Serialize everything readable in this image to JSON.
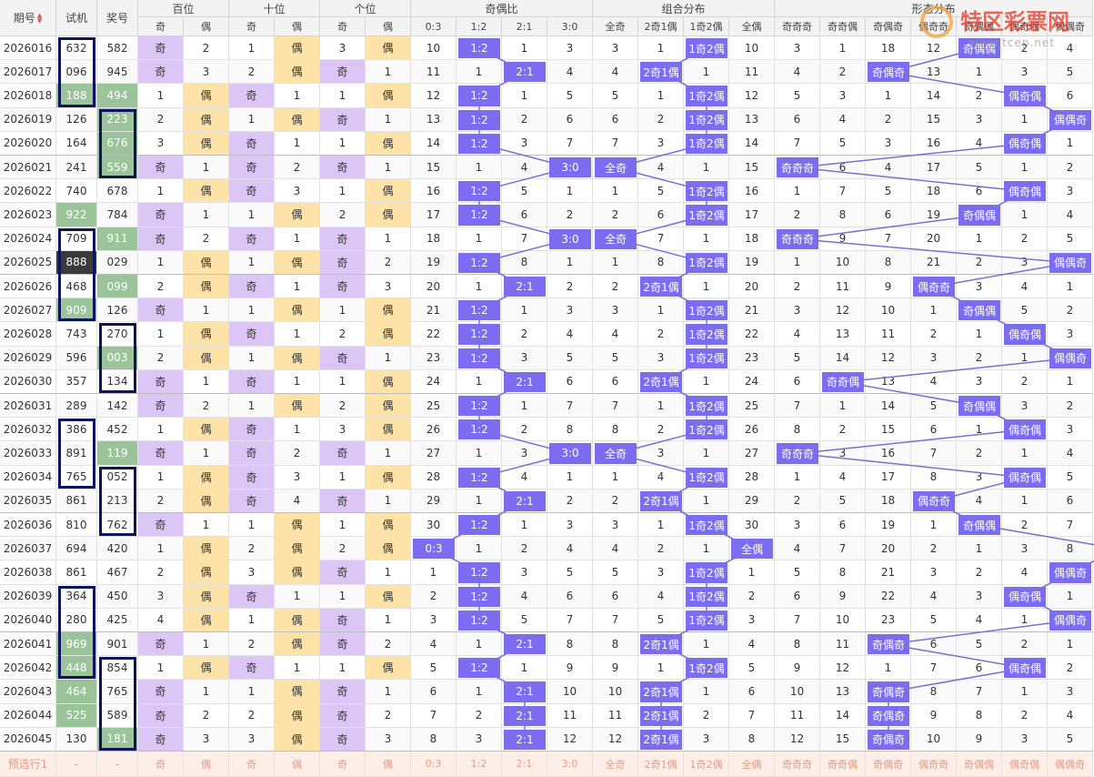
{
  "header": {
    "issue": "期号",
    "test": "试机",
    "draw": "奖号",
    "groups": [
      "百位",
      "十位",
      "个位",
      "奇偶比",
      "组合分布",
      "形态分布"
    ],
    "sub": [
      "奇",
      "偶",
      "奇",
      "偶",
      "奇",
      "偶",
      "0:3",
      "1:2",
      "2:1",
      "3:0",
      "全奇",
      "2奇1偶",
      "1奇2偶",
      "全偶",
      "奇奇奇",
      "奇奇偶",
      "奇偶奇",
      "偶奇奇",
      "奇偶偶",
      "偶奇偶",
      "偶偶奇"
    ]
  },
  "watermark": {
    "name": "特区彩票网",
    "url": "www.tcep.net"
  },
  "rows": [
    {
      "issue": "2026016",
      "test": "632",
      "draw": "582",
      "cells": [
        "奇",
        2,
        1,
        "偶",
        3,
        "偶",
        10,
        "1:2",
        1,
        3,
        3,
        1,
        "1奇2偶",
        10,
        3,
        1,
        18,
        12,
        "奇偶偶",
        2,
        4
      ]
    },
    {
      "issue": "2026017",
      "test": "096",
      "draw": "945",
      "cells": [
        "奇",
        3,
        2,
        "偶",
        "奇",
        1,
        11,
        1,
        "2:1",
        4,
        4,
        "2奇1偶",
        1,
        11,
        4,
        2,
        "奇偶奇",
        13,
        1,
        3,
        5
      ]
    },
    {
      "issue": "2026018",
      "test": "188",
      "draw": "494",
      "test_color": "#9cc49a",
      "draw_color": "#9cc49a",
      "cells": [
        1,
        "偶",
        "奇",
        1,
        1,
        "偶",
        12,
        "1:2",
        1,
        5,
        5,
        1,
        "1奇2偶",
        12,
        5,
        3,
        1,
        14,
        2,
        "偶奇偶",
        6
      ]
    },
    {
      "issue": "2026019",
      "test": "126",
      "draw": "223",
      "draw_color": "#9cc49a",
      "cells": [
        2,
        "偶",
        1,
        "偶",
        "奇",
        1,
        13,
        "1:2",
        2,
        6,
        6,
        2,
        "1奇2偶",
        13,
        6,
        4,
        2,
        15,
        3,
        1,
        "偶偶奇"
      ]
    },
    {
      "issue": "2026020",
      "test": "164",
      "draw": "676",
      "draw_color": "#9cc49a",
      "cells": [
        3,
        "偶",
        "奇",
        1,
        1,
        "偶",
        14,
        "1:2",
        3,
        7,
        7,
        3,
        "1奇2偶",
        14,
        7,
        5,
        3,
        16,
        4,
        "偶奇偶",
        1
      ]
    },
    {
      "issue": "2026021",
      "test": "241",
      "draw": "559",
      "draw_color": "#9cc49a",
      "cells": [
        "奇",
        1,
        "奇",
        2,
        "奇",
        1,
        15,
        1,
        4,
        "3:0",
        "全奇",
        4,
        1,
        15,
        "奇奇奇",
        6,
        4,
        17,
        5,
        1,
        2
      ]
    },
    {
      "issue": "2026022",
      "test": "740",
      "draw": "678",
      "cells": [
        1,
        "偶",
        "奇",
        3,
        1,
        "偶",
        16,
        "1:2",
        5,
        1,
        1,
        5,
        "1奇2偶",
        16,
        1,
        7,
        5,
        18,
        6,
        "偶奇偶",
        3
      ]
    },
    {
      "issue": "2026023",
      "test": "922",
      "draw": "784",
      "test_color": "#9cc49a",
      "cells": [
        "奇",
        1,
        1,
        "偶",
        2,
        "偶",
        17,
        "1:2",
        6,
        2,
        2,
        6,
        "1奇2偶",
        17,
        2,
        8,
        6,
        19,
        "奇偶偶",
        1,
        4
      ]
    },
    {
      "issue": "2026024",
      "test": "709",
      "draw": "911",
      "draw_color": "#9cc49a",
      "cells": [
        "奇",
        2,
        "奇",
        1,
        "奇",
        1,
        18,
        1,
        7,
        "3:0",
        "全奇",
        7,
        1,
        18,
        "奇奇奇",
        9,
        7,
        20,
        1,
        2,
        5
      ]
    },
    {
      "issue": "2026025",
      "test": "888",
      "draw": "029",
      "test_color": "#3a3a3a",
      "cells": [
        1,
        "偶",
        1,
        "偶",
        "奇",
        2,
        19,
        "1:2",
        8,
        1,
        1,
        8,
        "1奇2偶",
        19,
        1,
        10,
        8,
        21,
        2,
        3,
        "偶偶奇"
      ]
    },
    {
      "issue": "2026026",
      "test": "468",
      "draw": "099",
      "draw_color": "#9cc49a",
      "cells": [
        2,
        "偶",
        "奇",
        1,
        "奇",
        3,
        20,
        1,
        "2:1",
        2,
        2,
        "2奇1偶",
        1,
        20,
        2,
        11,
        9,
        "偶奇奇",
        3,
        4,
        1
      ]
    },
    {
      "issue": "2026027",
      "test": "909",
      "draw": "126",
      "test_color": "#9cc49a",
      "cells": [
        "奇",
        1,
        1,
        "偶",
        1,
        "偶",
        21,
        "1:2",
        1,
        3,
        3,
        1,
        "1奇2偶",
        21,
        3,
        12,
        10,
        1,
        "奇偶偶",
        5,
        2
      ]
    },
    {
      "issue": "2026028",
      "test": "743",
      "draw": "270",
      "cells": [
        1,
        "偶",
        "奇",
        1,
        2,
        "偶",
        22,
        "1:2",
        2,
        4,
        4,
        2,
        "1奇2偶",
        22,
        4,
        13,
        11,
        2,
        1,
        "偶奇偶",
        3
      ]
    },
    {
      "issue": "2026029",
      "test": "596",
      "draw": "003",
      "draw_color": "#9cc49a",
      "cells": [
        2,
        "偶",
        1,
        "偶",
        "奇",
        1,
        23,
        "1:2",
        3,
        5,
        5,
        3,
        "1奇2偶",
        23,
        5,
        14,
        12,
        3,
        2,
        1,
        "偶偶奇"
      ]
    },
    {
      "issue": "2026030",
      "test": "357",
      "draw": "134",
      "cells": [
        "奇",
        1,
        "奇",
        1,
        1,
        "偶",
        24,
        1,
        "2:1",
        6,
        6,
        "2奇1偶",
        1,
        24,
        6,
        "奇奇偶",
        13,
        4,
        3,
        2,
        1
      ]
    },
    {
      "issue": "2026031",
      "test": "289",
      "draw": "142",
      "cells": [
        "奇",
        2,
        1,
        "偶",
        2,
        "偶",
        25,
        "1:2",
        1,
        7,
        7,
        1,
        "1奇2偶",
        25,
        7,
        1,
        14,
        5,
        "奇偶偶",
        3,
        2
      ]
    },
    {
      "issue": "2026032",
      "test": "386",
      "draw": "452",
      "cells": [
        1,
        "偶",
        "奇",
        1,
        3,
        "偶",
        26,
        "1:2",
        2,
        8,
        8,
        2,
        "1奇2偶",
        26,
        8,
        2,
        15,
        6,
        1,
        "偶奇偶",
        3
      ]
    },
    {
      "issue": "2026033",
      "test": "891",
      "draw": "119",
      "draw_color": "#9cc49a",
      "cells": [
        "奇",
        1,
        "奇",
        2,
        "奇",
        1,
        27,
        1,
        3,
        "3:0",
        "全奇",
        3,
        1,
        27,
        "奇奇奇",
        3,
        16,
        7,
        2,
        1,
        4
      ]
    },
    {
      "issue": "2026034",
      "test": "765",
      "draw": "052",
      "cells": [
        1,
        "偶",
        "奇",
        3,
        1,
        "偶",
        28,
        "1:2",
        4,
        1,
        1,
        4,
        "1奇2偶",
        28,
        1,
        4,
        17,
        8,
        3,
        "偶奇偶",
        5
      ]
    },
    {
      "issue": "2026035",
      "test": "861",
      "draw": "213",
      "cells": [
        2,
        "偶",
        "奇",
        4,
        "奇",
        1,
        29,
        1,
        "2:1",
        2,
        2,
        "2奇1偶",
        1,
        29,
        2,
        5,
        18,
        "偶奇奇",
        4,
        1,
        6
      ]
    },
    {
      "issue": "2026036",
      "test": "810",
      "draw": "762",
      "cells": [
        "奇",
        1,
        1,
        "偶",
        1,
        "偶",
        30,
        "1:2",
        1,
        3,
        3,
        1,
        "1奇2偶",
        30,
        3,
        6,
        19,
        1,
        "奇偶偶",
        2,
        7
      ]
    },
    {
      "issue": "2026037",
      "test": "694",
      "draw": "420",
      "cells": [
        1,
        "偶",
        2,
        "偶",
        2,
        "偶",
        "0:3",
        1,
        2,
        4,
        4,
        2,
        1,
        "全偶",
        4,
        7,
        20,
        2,
        1,
        3,
        8
      ]
    },
    {
      "issue": "2026038",
      "test": "861",
      "draw": "467",
      "cells": [
        2,
        "偶",
        3,
        "偶",
        "奇",
        1,
        1,
        "1:2",
        3,
        5,
        5,
        3,
        "1奇2偶",
        1,
        5,
        8,
        21,
        3,
        2,
        4,
        "偶偶奇"
      ]
    },
    {
      "issue": "2026039",
      "test": "364",
      "draw": "450",
      "cells": [
        3,
        "偶",
        "奇",
        1,
        1,
        "偶",
        2,
        "1:2",
        4,
        6,
        6,
        4,
        "1奇2偶",
        2,
        6,
        9,
        22,
        4,
        3,
        "偶奇偶",
        1
      ]
    },
    {
      "issue": "2026040",
      "test": "280",
      "draw": "425",
      "cells": [
        4,
        "偶",
        1,
        "偶",
        "奇",
        1,
        3,
        "1:2",
        5,
        7,
        7,
        5,
        "1奇2偶",
        3,
        7,
        10,
        23,
        5,
        4,
        1,
        "偶偶奇"
      ]
    },
    {
      "issue": "2026041",
      "test": "969",
      "draw": "901",
      "test_color": "#9cc49a",
      "cells": [
        "奇",
        1,
        2,
        "偶",
        "奇",
        2,
        4,
        1,
        "2:1",
        8,
        8,
        "2奇1偶",
        1,
        4,
        8,
        11,
        "奇偶奇",
        6,
        5,
        2,
        1
      ]
    },
    {
      "issue": "2026042",
      "test": "448",
      "draw": "854",
      "test_color": "#9cc49a",
      "cells": [
        1,
        "偶",
        "奇",
        1,
        1,
        "偶",
        5,
        "1:2",
        1,
        9,
        9,
        1,
        "1奇2偶",
        5,
        9,
        12,
        1,
        7,
        6,
        "偶奇偶",
        2
      ]
    },
    {
      "issue": "2026043",
      "test": "464",
      "draw": "765",
      "test_color": "#9cc49a",
      "cells": [
        "奇",
        1,
        1,
        "偶",
        "奇",
        1,
        6,
        1,
        "2:1",
        10,
        10,
        "2奇1偶",
        1,
        6,
        10,
        13,
        "奇偶奇",
        8,
        7,
        1,
        3
      ]
    },
    {
      "issue": "2026044",
      "test": "525",
      "draw": "589",
      "test_color": "#9cc49a",
      "cells": [
        "奇",
        2,
        2,
        "偶",
        "奇",
        2,
        7,
        2,
        "2:1",
        11,
        11,
        "2奇1偶",
        2,
        7,
        11,
        14,
        "奇偶奇",
        9,
        8,
        2,
        4
      ]
    },
    {
      "issue": "2026045",
      "test": "130",
      "draw": "181",
      "draw_color": "#9cc49a",
      "cells": [
        "奇",
        3,
        3,
        "偶",
        "奇",
        3,
        8,
        3,
        "2:1",
        12,
        12,
        "2奇1偶",
        3,
        8,
        12,
        15,
        "奇偶奇",
        10,
        9,
        3,
        5
      ]
    }
  ],
  "preselect": {
    "issue": "预选行1",
    "test": "-",
    "draw": "-",
    "cells": [
      "奇",
      "偶",
      "奇",
      "偶",
      "奇",
      "偶",
      "0:3",
      "1:2",
      "2:1",
      "3:0",
      "全奇",
      "2奇1偶",
      "1奇2偶",
      "全偶",
      "奇奇奇",
      "奇奇偶",
      "奇偶奇",
      "偶奇奇",
      "奇偶偶",
      "偶奇偶",
      "偶偶奇"
    ]
  }
}
